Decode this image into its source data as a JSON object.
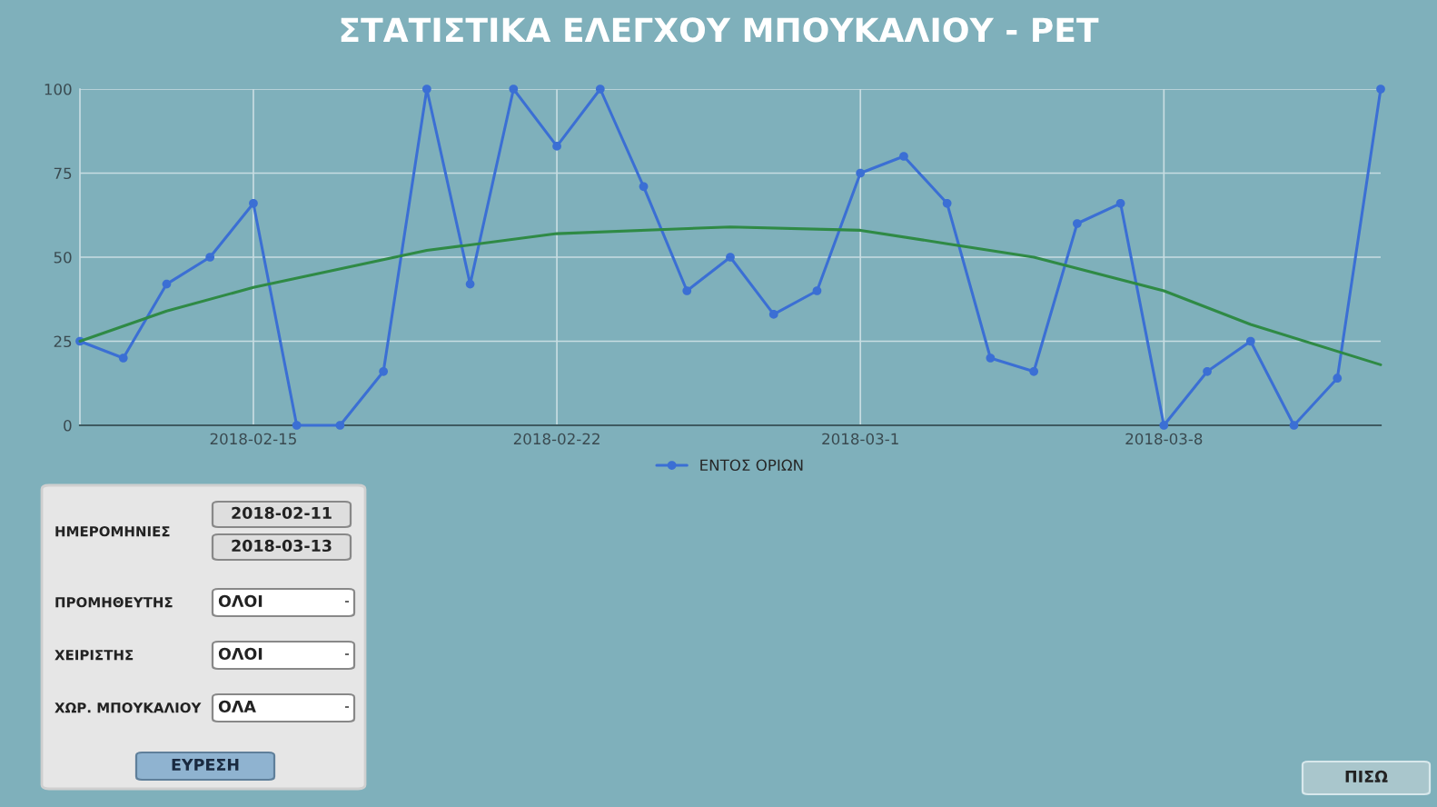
{
  "chart_data": [
    {
      "type": "line",
      "title": "ΣΤΑΤΙΣΤΙΚΑ ΕΛΕΓΧΟΥ ΜΠΟΥΚΑΛΙΟΥ - PET",
      "x": [
        "2018-02-11",
        "2018-02-12",
        "2018-02-13",
        "2018-02-14",
        "2018-02-15",
        "2018-02-16",
        "2018-02-17",
        "2018-02-18",
        "2018-02-19",
        "2018-02-20",
        "2018-02-21",
        "2018-02-22",
        "2018-02-23",
        "2018-02-24",
        "2018-02-25",
        "2018-02-26",
        "2018-02-27",
        "2018-02-28",
        "2018-03-01",
        "2018-03-02",
        "2018-03-03",
        "2018-03-04",
        "2018-03-05",
        "2018-03-06",
        "2018-03-07",
        "2018-03-08",
        "2018-03-09",
        "2018-03-10",
        "2018-03-11",
        "2018-03-12",
        "2018-03-13"
      ],
      "series": [
        {
          "name": "ΕΝΤΟΣ ΟΡΙΩΝ",
          "color": "#3b6fd4",
          "marker": "circle",
          "values": [
            25,
            20,
            42,
            50,
            66,
            0,
            0,
            16,
            100,
            42,
            100,
            83,
            100,
            71,
            40,
            50,
            33,
            40,
            75,
            80,
            66,
            20,
            16,
            60,
            66,
            0,
            16,
            25,
            0,
            14,
            100
          ]
        },
        {
          "type": "line",
          "color": "#2f8a45",
          "marker": "none",
          "x": [
            "2018-02-11",
            "2018-02-13",
            "2018-02-15",
            "2018-02-19",
            "2018-02-22",
            "2018-02-26",
            "2018-03-01",
            "2018-03-03",
            "2018-03-05",
            "2018-03-08",
            "2018-03-10",
            "2018-03-13"
          ],
          "values": [
            25,
            34,
            41,
            52,
            57,
            59,
            58,
            54,
            50,
            40,
            30,
            18
          ]
        }
      ],
      "xlim": [
        "2018-02-11",
        "2018-03-13"
      ],
      "xticks": [
        {
          "value": "2018-02-15",
          "label": "2018-02-15"
        },
        {
          "value": "2018-02-22",
          "label": "2018-02-22"
        },
        {
          "value": "2018-03-01",
          "label": "2018-03-1"
        },
        {
          "value": "2018-03-08",
          "label": "2018-03-8"
        }
      ],
      "ylim": [
        0,
        100
      ],
      "yticks": [
        0,
        25,
        50,
        75,
        100
      ],
      "grid": true,
      "legend": "bottom",
      "line_style": "solid"
    },
    {
      "type": "other",
      "annotations": [
        "ΗΜΕΡΟΜΗΝΙΕΣ",
        "2018-02-11",
        "2018-03-13",
        "ΠΡΟΜΗΘΕΥΤΗΣ",
        "ΟΛΟΙ",
        "ΧΕΙΡΙΣΤΗΣ",
        "ΟΛΟΙ",
        "ΧΩΡ. ΜΠΟΥΚΑΛΙΟΥ",
        "ΟΛΑ",
        "ΕΥΡΕΣΗ",
        "ΠΙΣΩ"
      ]
    }
  ]
}
